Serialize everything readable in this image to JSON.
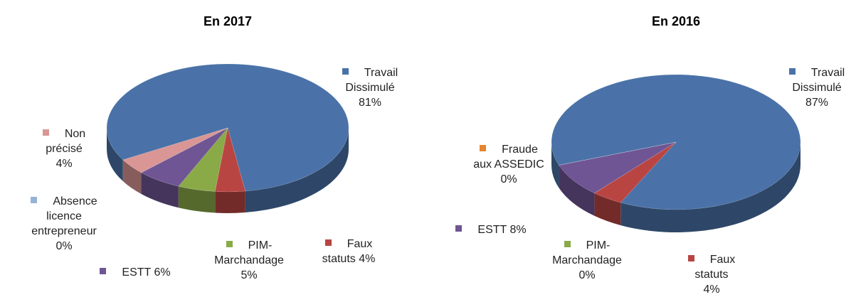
{
  "chart_data": [
    {
      "type": "pie",
      "title": "En 2017",
      "categories": [
        "Travail Dissimulé",
        "Faux statuts",
        "PIM-Marchandage",
        "ESTT",
        "Absence licence entrepreneur",
        "Non précisé"
      ],
      "values": [
        81,
        4,
        5,
        6,
        0,
        4
      ],
      "value_labels": [
        "81%",
        "4%",
        "5%",
        "6%",
        "0%",
        "4%"
      ],
      "colors": [
        "#4a72a8",
        "#b94543",
        "#8aaa48",
        "#6f5594",
        "#95b3d7",
        "#d99694"
      ]
    },
    {
      "type": "pie",
      "title": "En 2016",
      "categories": [
        "Travail Dissimulé",
        "Faux statuts",
        "PIM-Marchandage",
        "ESTT",
        "Fraude aux ASSEDIC"
      ],
      "values": [
        87,
        4,
        0,
        8,
        0
      ],
      "value_labels": [
        "87%",
        "4%",
        "0%",
        "8%",
        "0%"
      ],
      "colors": [
        "#4a72a8",
        "#b94543",
        "#8aaa48",
        "#6f5594",
        "#e6852e"
      ]
    }
  ]
}
